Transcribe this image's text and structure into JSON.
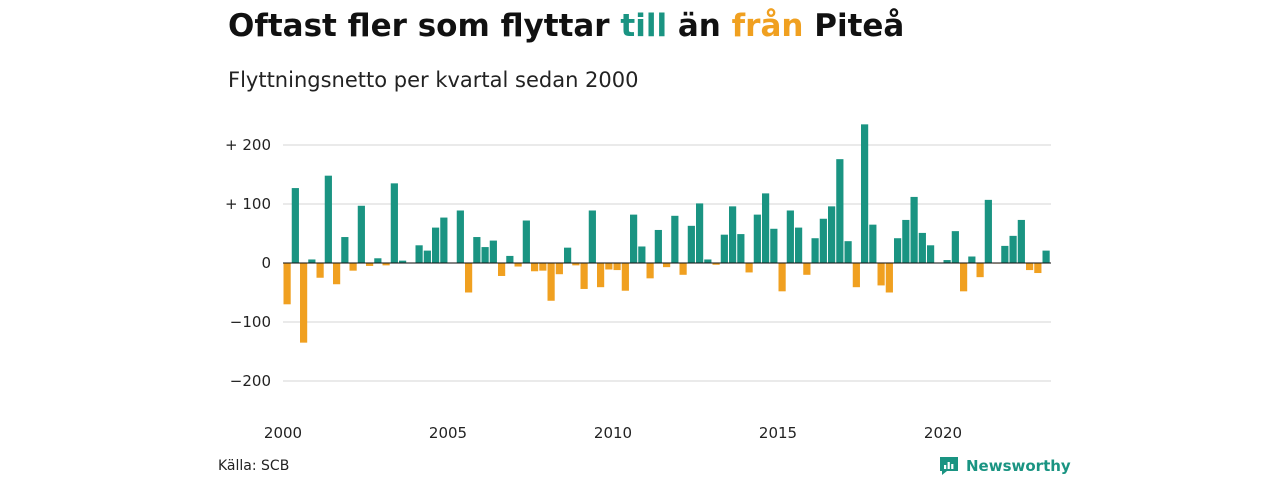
{
  "title": {
    "part1": "Oftast fler som flyttar ",
    "part2": "till",
    "part3": " än ",
    "part4": "från",
    "part5": " Piteå"
  },
  "subtitle": "Flyttningsnetto per kvartal sedan 2000",
  "source": "Källa: SCB",
  "brand": "Newsworthy",
  "colors": {
    "positive": "#1a9482",
    "negative": "#f0a020",
    "grid": "#dddddd"
  },
  "chart_data": {
    "type": "bar",
    "x_start": "2000Q1",
    "x_ticks": [
      "2000",
      "2005",
      "2010",
      "2015",
      "2020"
    ],
    "y_ticks": [
      "+ 200",
      "+ 100",
      "0",
      "−100",
      "−200"
    ],
    "ylim": [
      -215,
      235
    ],
    "grid": true,
    "values": [
      -70,
      127,
      -135,
      6,
      -25,
      148,
      -36,
      44,
      -13,
      97,
      -5,
      8,
      -4,
      135,
      4,
      0,
      30,
      21,
      60,
      77,
      0,
      89,
      -50,
      44,
      27,
      38,
      -22,
      12,
      -6,
      72,
      -14,
      -13,
      -64,
      -19,
      26,
      -4,
      -44,
      89,
      -41,
      -11,
      -12,
      -47,
      82,
      28,
      -26,
      56,
      -7,
      80,
      -20,
      63,
      101,
      6,
      -3,
      48,
      96,
      49,
      -16,
      82,
      118,
      58,
      -48,
      89,
      60,
      -20,
      42,
      75,
      96,
      176,
      37,
      -41,
      235,
      65,
      -38,
      -50,
      42,
      73,
      112,
      51,
      30,
      0,
      5,
      54,
      -48,
      11,
      -24,
      107,
      -1,
      29,
      46,
      73,
      -12,
      -17,
      21
    ]
  }
}
